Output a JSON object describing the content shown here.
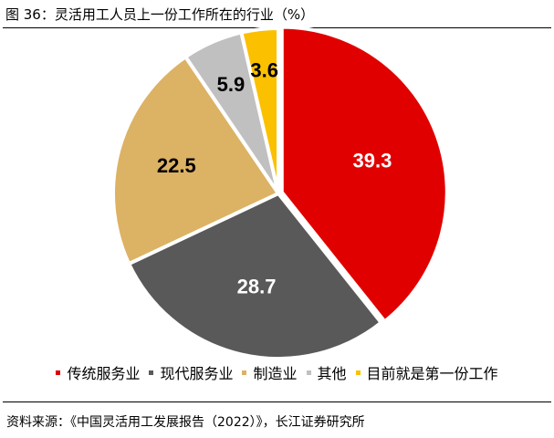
{
  "figure": {
    "title": "图 36：灵活用工人员上一份工作所在的行业（%）",
    "source": "资料来源：《中国灵活用工发展报告（2022）》，长江证券研究所"
  },
  "chart_data": {
    "type": "pie",
    "title": "图 36：灵活用工人员上一份工作所在的行业（%）",
    "unit": "%",
    "slices": [
      {
        "label": "传统服务业",
        "value": 39.3,
        "display": "39.3",
        "color": "#e10000",
        "label_color": "#ffffff"
      },
      {
        "label": "现代服务业",
        "value": 28.7,
        "display": "28.7",
        "color": "#595959",
        "label_color": "#ffffff"
      },
      {
        "label": "制造业",
        "value": 22.5,
        "display": "22.5",
        "color": "#dcb264",
        "label_color": "#000000"
      },
      {
        "label": "其他",
        "value": 5.9,
        "display": "5.9",
        "color": "#c0c0c0",
        "label_color": "#000000"
      },
      {
        "label": "目前就是第一份工作",
        "value": 3.6,
        "display": "3.6",
        "color": "#fbc000",
        "label_color": "#000000"
      }
    ],
    "start_angle": "12 o'clock",
    "direction": "clockwise",
    "legend_position": "bottom"
  }
}
